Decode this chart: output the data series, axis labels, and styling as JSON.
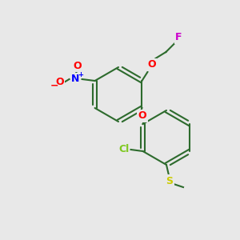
{
  "background_color": "#e8e8e8",
  "bond_color": "#2d6b2d",
  "atom_colors": {
    "F": "#cc00cc",
    "O": "#ff0000",
    "N": "#0000ff",
    "Cl": "#7ec820",
    "S": "#cccc00"
  },
  "figsize": [
    3.0,
    3.0
  ],
  "dpi": 100
}
